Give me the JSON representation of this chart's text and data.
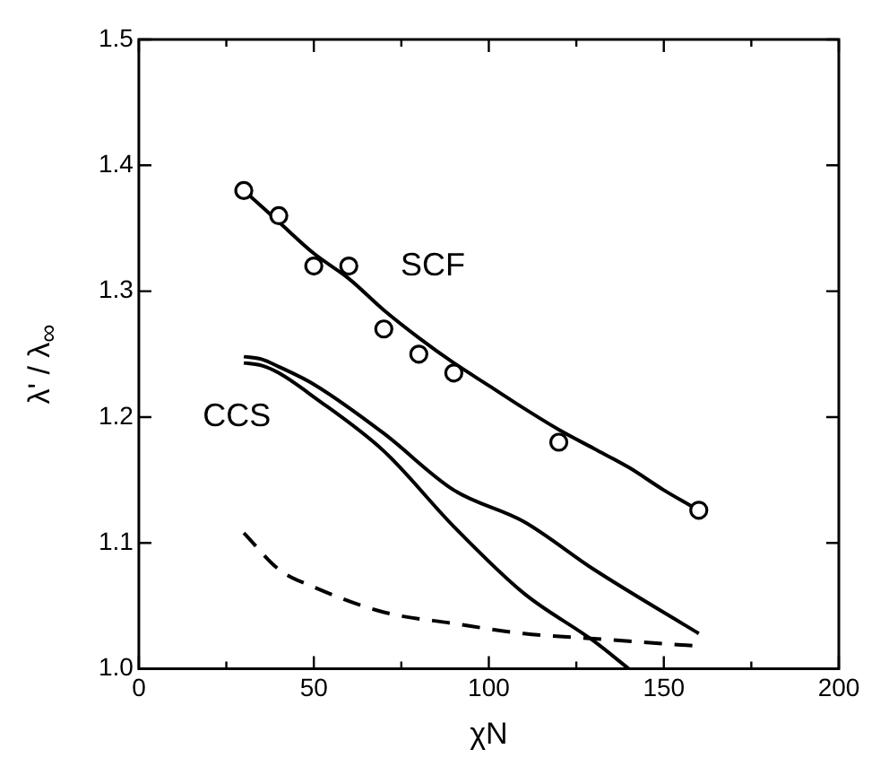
{
  "chart_data": {
    "type": "line",
    "xlabel": "χN",
    "ylabel": "λ' / λ$_{∞}$",
    "xlim": [
      0,
      200
    ],
    "ylim": [
      1.0,
      1.5
    ],
    "xticks": [
      0,
      {
        "value": 25,
        "label": null
      },
      50,
      {
        "value": 75,
        "label": null
      },
      100,
      {
        "value": 125,
        "label": null
      },
      150,
      {
        "value": 175,
        "label": null
      },
      200
    ],
    "yticks": [
      {
        "value": 1.0,
        "label": "1.0"
      },
      1.1,
      1.2,
      1.3,
      1.4,
      1.5
    ],
    "grid": false,
    "legend": false,
    "series": [
      {
        "type": "scatter",
        "marker": "circle",
        "color": "#000000",
        "x": [
          30,
          40,
          50,
          60,
          70,
          80,
          90,
          120,
          160
        ],
        "values": [
          1.38,
          1.36,
          1.32,
          1.32,
          1.27,
          1.25,
          1.235,
          1.18,
          1.126
        ]
      },
      {
        "marker": "none",
        "line_style": "solid",
        "color": "#000000",
        "x": [
          30,
          40,
          50,
          60,
          70,
          80,
          90,
          100,
          110,
          120,
          130,
          140,
          150,
          160
        ],
        "values": [
          1.38,
          1.355,
          1.33,
          1.31,
          1.285,
          1.263,
          1.243,
          1.225,
          1.207,
          1.19,
          1.175,
          1.16,
          1.142,
          1.126
        ]
      },
      {
        "marker": "none",
        "line_style": "solid",
        "color": "#000000",
        "x": [
          30,
          35,
          40,
          50,
          70,
          90,
          110,
          130,
          160
        ],
        "values": [
          1.248,
          1.246,
          1.24,
          1.226,
          1.187,
          1.142,
          1.117,
          1.079,
          1.028
        ]
      },
      {
        "marker": "none",
        "line_style": "solid",
        "color": "#000000",
        "x": [
          30,
          35,
          40,
          50,
          70,
          90,
          110,
          130,
          140
        ],
        "values": [
          1.243,
          1.241,
          1.235,
          1.216,
          1.173,
          1.113,
          1.06,
          1.022,
          1.0
        ]
      },
      {
        "marker": "none",
        "line_style": "dashed",
        "color": "#000000",
        "x": [
          30,
          40,
          50,
          70,
          90,
          110,
          130,
          160
        ],
        "values": [
          1.108,
          1.079,
          1.065,
          1.045,
          1.036,
          1.028,
          1.024,
          1.018
        ]
      }
    ],
    "annotations": [
      "SCF",
      "CCS"
    ]
  }
}
